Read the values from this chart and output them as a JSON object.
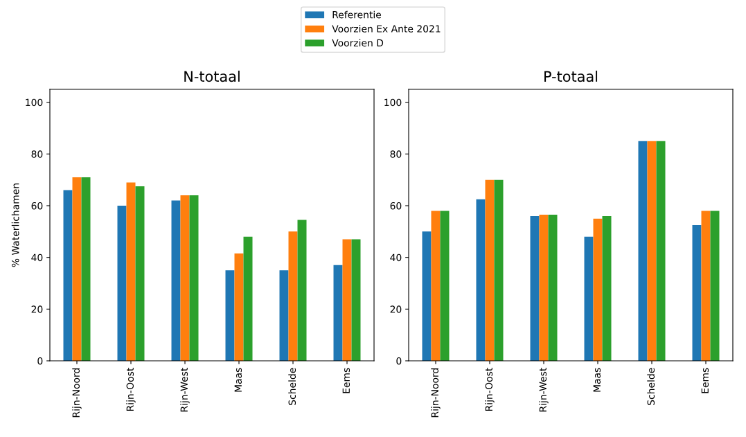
{
  "chart_data": [
    {
      "type": "bar",
      "title": "N-totaal",
      "ylabel": "% Waterlichamen",
      "categories": [
        "Rijn-Noord",
        "Rijn-Oost",
        "Rijn-West",
        "Maas",
        "Schelde",
        "Eems"
      ],
      "series": [
        {
          "name": "Referentie",
          "color": "#1f77b4",
          "values": [
            66,
            60,
            62,
            35,
            35,
            37
          ]
        },
        {
          "name": "Voorzien Ex Ante 2021",
          "color": "#ff7f0e",
          "values": [
            71,
            69,
            64,
            41.5,
            50,
            47
          ]
        },
        {
          "name": "Voorzien D",
          "color": "#2ca02c",
          "values": [
            71,
            67.5,
            64,
            48,
            54.5,
            47
          ]
        }
      ],
      "ylim": [
        0,
        105
      ],
      "yticks": [
        0,
        20,
        40,
        60,
        80,
        100
      ],
      "legend": "top",
      "grid": false
    },
    {
      "type": "bar",
      "title": "P-totaal",
      "categories": [
        "Rijn-Noord",
        "Rijn-Oost",
        "Rijn-West",
        "Maas",
        "Schelde",
        "Eems"
      ],
      "series": [
        {
          "color": "#1f77b4",
          "values": [
            50,
            62.5,
            56,
            48,
            85,
            52.5
          ]
        },
        {
          "color": "#ff7f0e",
          "values": [
            58,
            70,
            56.5,
            55,
            85,
            58
          ]
        },
        {
          "color": "#2ca02c",
          "values": [
            58,
            70,
            56.5,
            56,
            85,
            58
          ]
        }
      ],
      "ylim": [
        0,
        105
      ],
      "yticks": [
        0,
        20,
        40,
        60,
        80,
        100
      ],
      "legend": false,
      "grid": false
    }
  ]
}
